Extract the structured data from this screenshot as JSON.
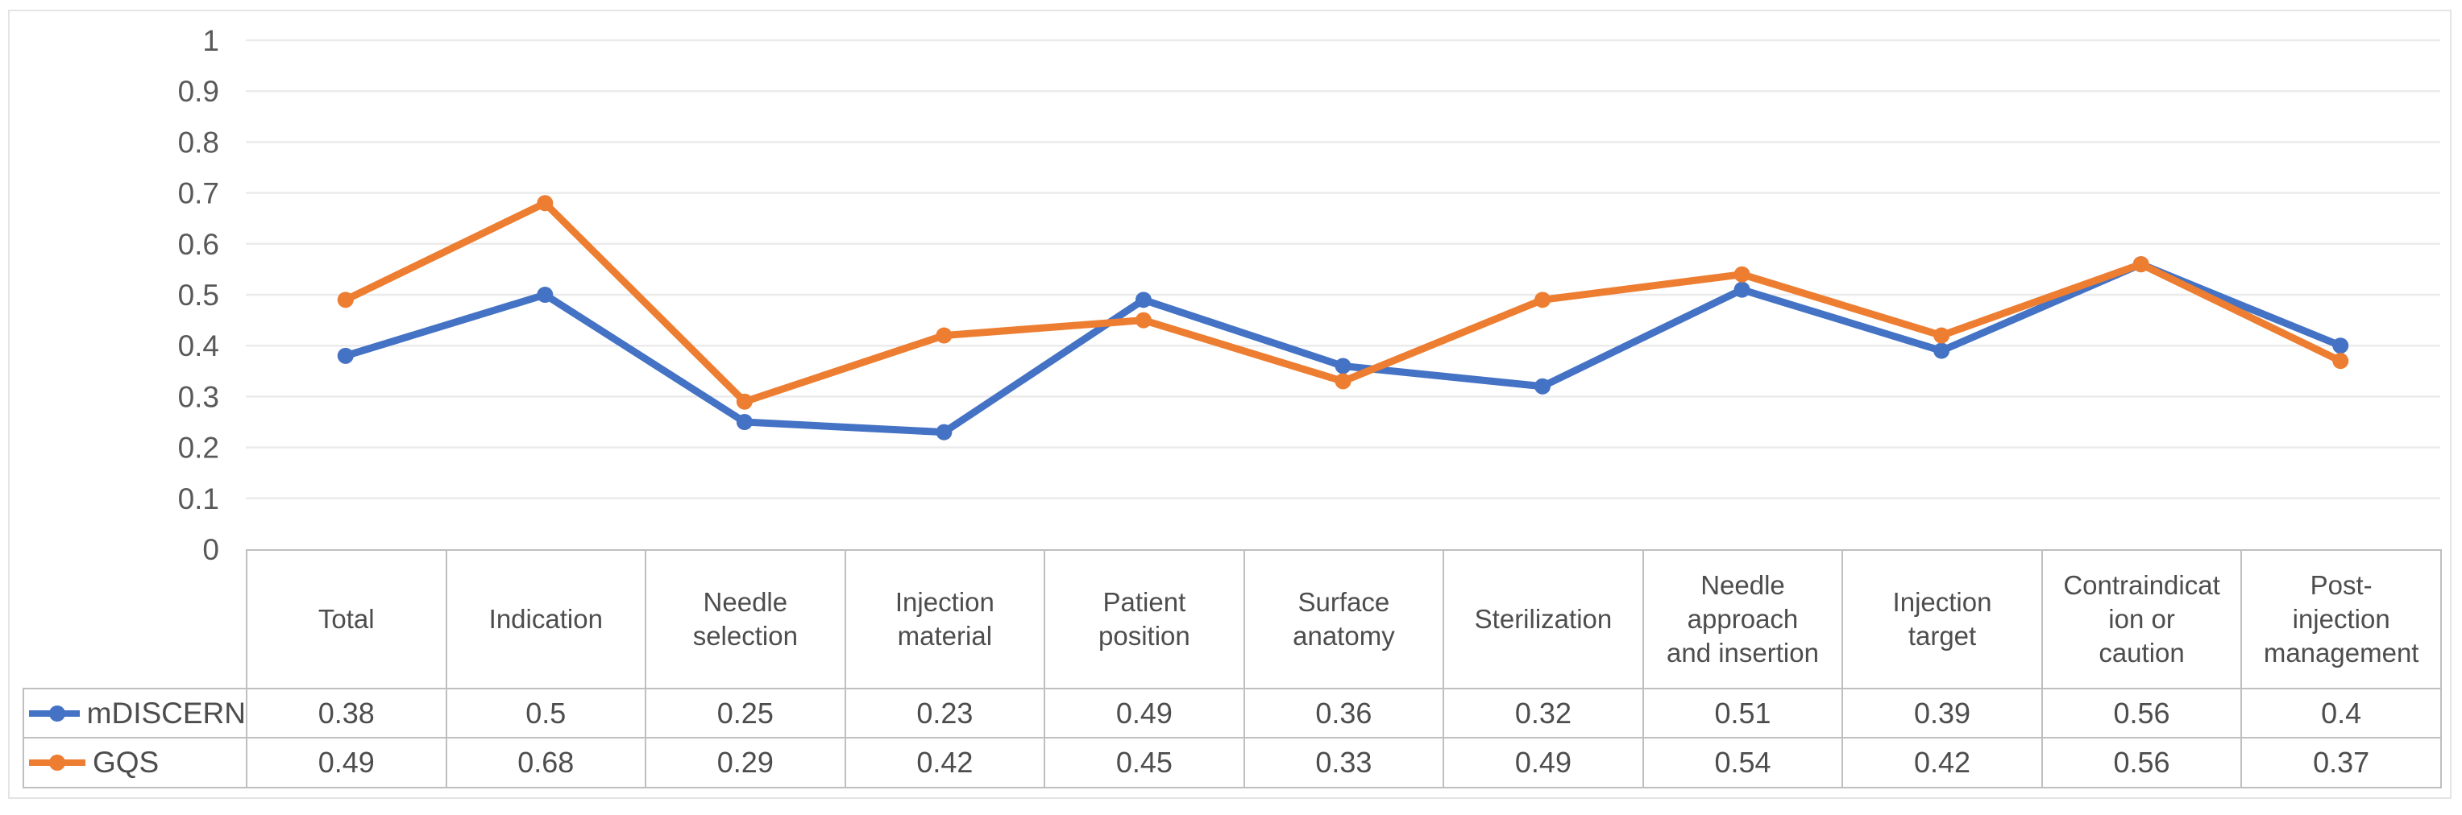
{
  "chart_data": {
    "type": "line",
    "title": "",
    "xlabel": "",
    "ylabel": "",
    "ylim": [
      0,
      1
    ],
    "ytick_labels": [
      "0",
      "0.1",
      "0.2",
      "0.3",
      "0.4",
      "0.5",
      "0.6",
      "0.7",
      "0.8",
      "0.9",
      "1"
    ],
    "grid": true,
    "legend_position": "table-left",
    "categories": [
      "Total",
      "Indication",
      "Needle selection",
      "Injection material",
      "Patient position",
      "Surface anatomy",
      "Sterilization",
      "Needle approach and insertion",
      "Injection target",
      "Contraindication or caution",
      "Post-injection management"
    ],
    "series": [
      {
        "name": "mDISCERN",
        "color": "#4472C4",
        "marker": "circle",
        "values": [
          0.38,
          0.5,
          0.25,
          0.23,
          0.49,
          0.36,
          0.32,
          0.51,
          0.39,
          0.56,
          0.4
        ]
      },
      {
        "name": "GQS",
        "color": "#ED7D31",
        "marker": "circle",
        "values": [
          0.49,
          0.68,
          0.29,
          0.42,
          0.45,
          0.33,
          0.49,
          0.54,
          0.42,
          0.56,
          0.37
        ]
      }
    ]
  },
  "table": {
    "column_headers": [
      "Total",
      "Indication",
      "Needle\nselection",
      "Injection\nmaterial",
      "Patient\nposition",
      "Surface\nanatomy",
      "Sterilization",
      "Needle\napproach\nand insertion",
      "Injection\ntarget",
      "Contraindicat\nion or\ncaution",
      "Post-\ninjection\nmanagement"
    ],
    "rows": [
      {
        "label": "mDISCERN",
        "values": [
          "0.38",
          "0.5",
          "0.25",
          "0.23",
          "0.49",
          "0.36",
          "0.32",
          "0.51",
          "0.39",
          "0.56",
          "0.4"
        ]
      },
      {
        "label": "GQS",
        "values": [
          "0.49",
          "0.68",
          "0.29",
          "0.42",
          "0.45",
          "0.33",
          "0.49",
          "0.54",
          "0.42",
          "0.56",
          "0.37"
        ]
      }
    ]
  },
  "colors": {
    "gridline": "#ebebeb",
    "axis_text": "#595959",
    "table_border": "#bfbfbf",
    "frame_border": "#e4e4e4"
  }
}
